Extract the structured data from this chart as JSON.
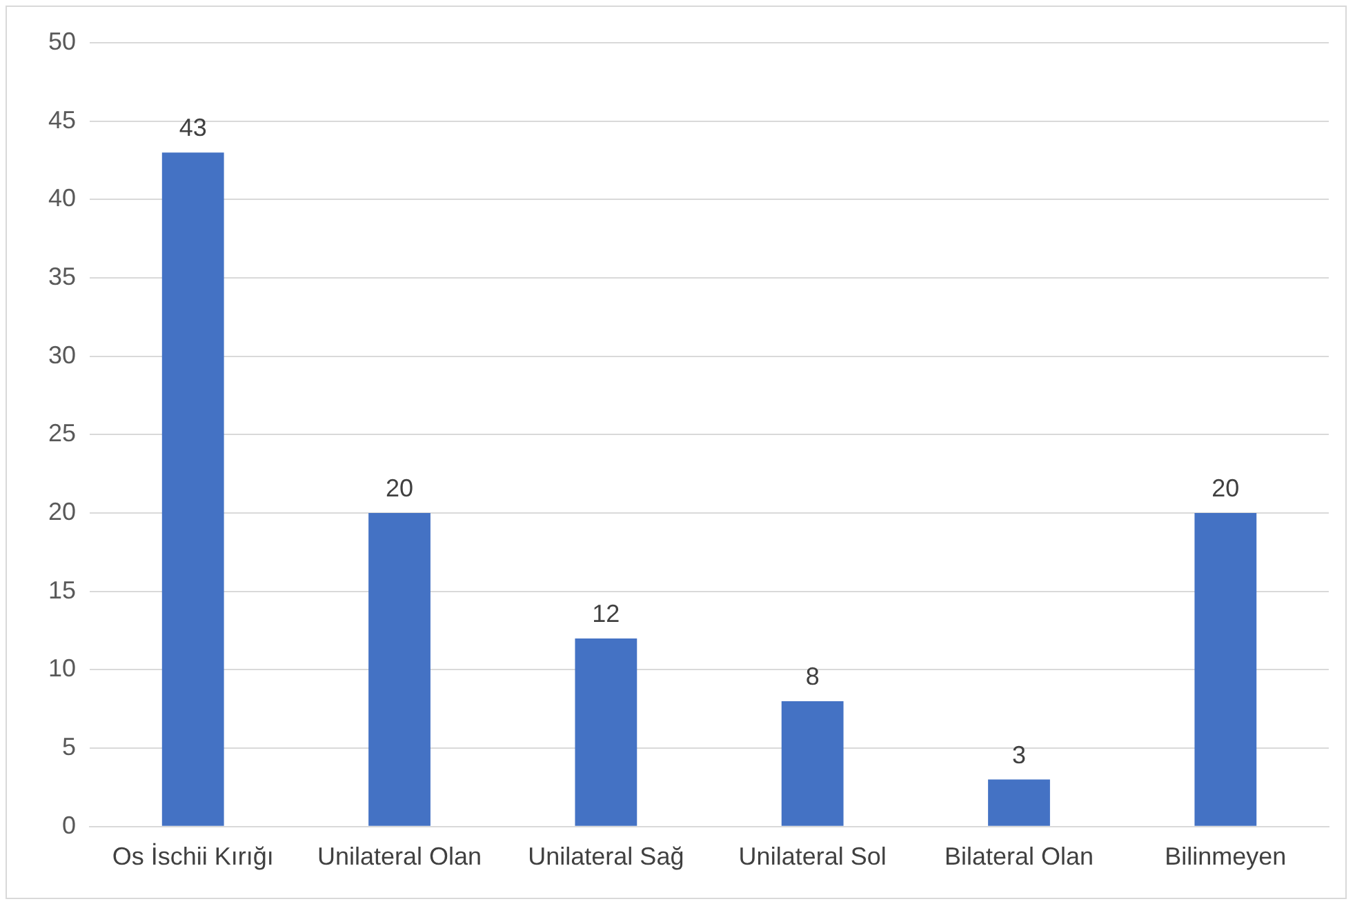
{
  "chart_data": {
    "type": "bar",
    "categories": [
      "Os İschii Kırığı",
      "Unilateral Olan",
      "Unilateral Sağ",
      "Unilateral Sol",
      "Bilateral Olan",
      "Bilinmeyen"
    ],
    "values": [
      43,
      20,
      12,
      8,
      3,
      20
    ],
    "color": "#4472c4",
    "ylim": [
      0,
      50
    ],
    "yticks": [
      0,
      5,
      10,
      15,
      20,
      25,
      30,
      35,
      40,
      45,
      50
    ],
    "grid": "y",
    "data_labels": true,
    "legend": false
  }
}
